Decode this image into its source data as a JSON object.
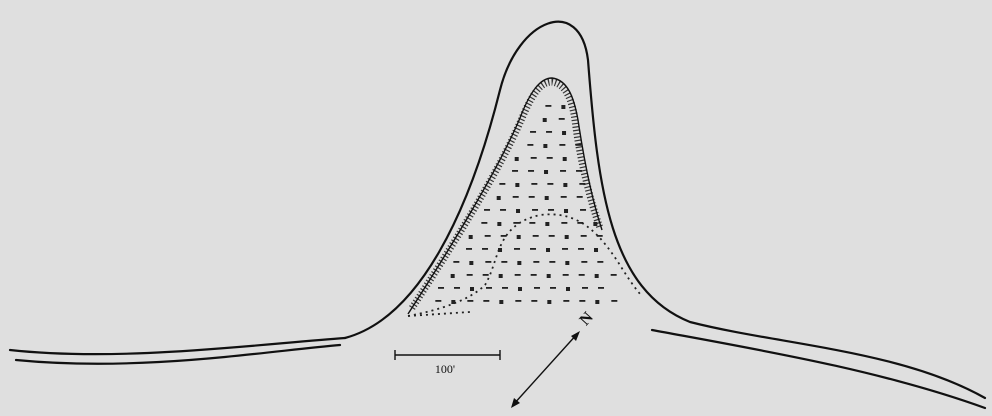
{
  "scale_bar": {
    "label": "100'"
  },
  "north_arrow": {
    "label": "N"
  }
}
